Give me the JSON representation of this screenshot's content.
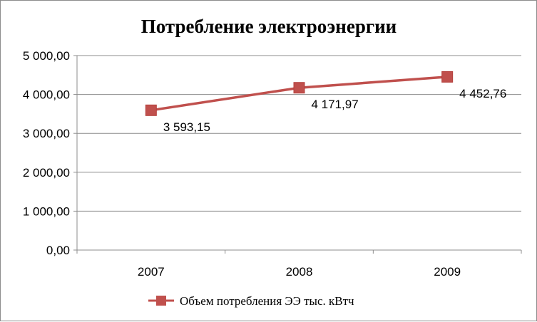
{
  "chart_data": {
    "type": "line",
    "title": "Потребление электроэнергии",
    "categories": [
      "2007",
      "2008",
      "2009"
    ],
    "series": [
      {
        "name": "Объем потребления ЭЭ тыс. кВтч",
        "values": [
          3593.15,
          4171.97,
          4452.76
        ],
        "data_labels": [
          "3 593,15",
          "4 171,97",
          "4 452,76"
        ],
        "color": "#c0504d",
        "marker": "square"
      }
    ],
    "ylim": [
      0,
      5000
    ],
    "yticks": [
      "0,00",
      "1 000,00",
      "2 000,00",
      "3 000,00",
      "4 000,00",
      "5 000,00"
    ],
    "grid": true,
    "legend_position": "bottom"
  }
}
